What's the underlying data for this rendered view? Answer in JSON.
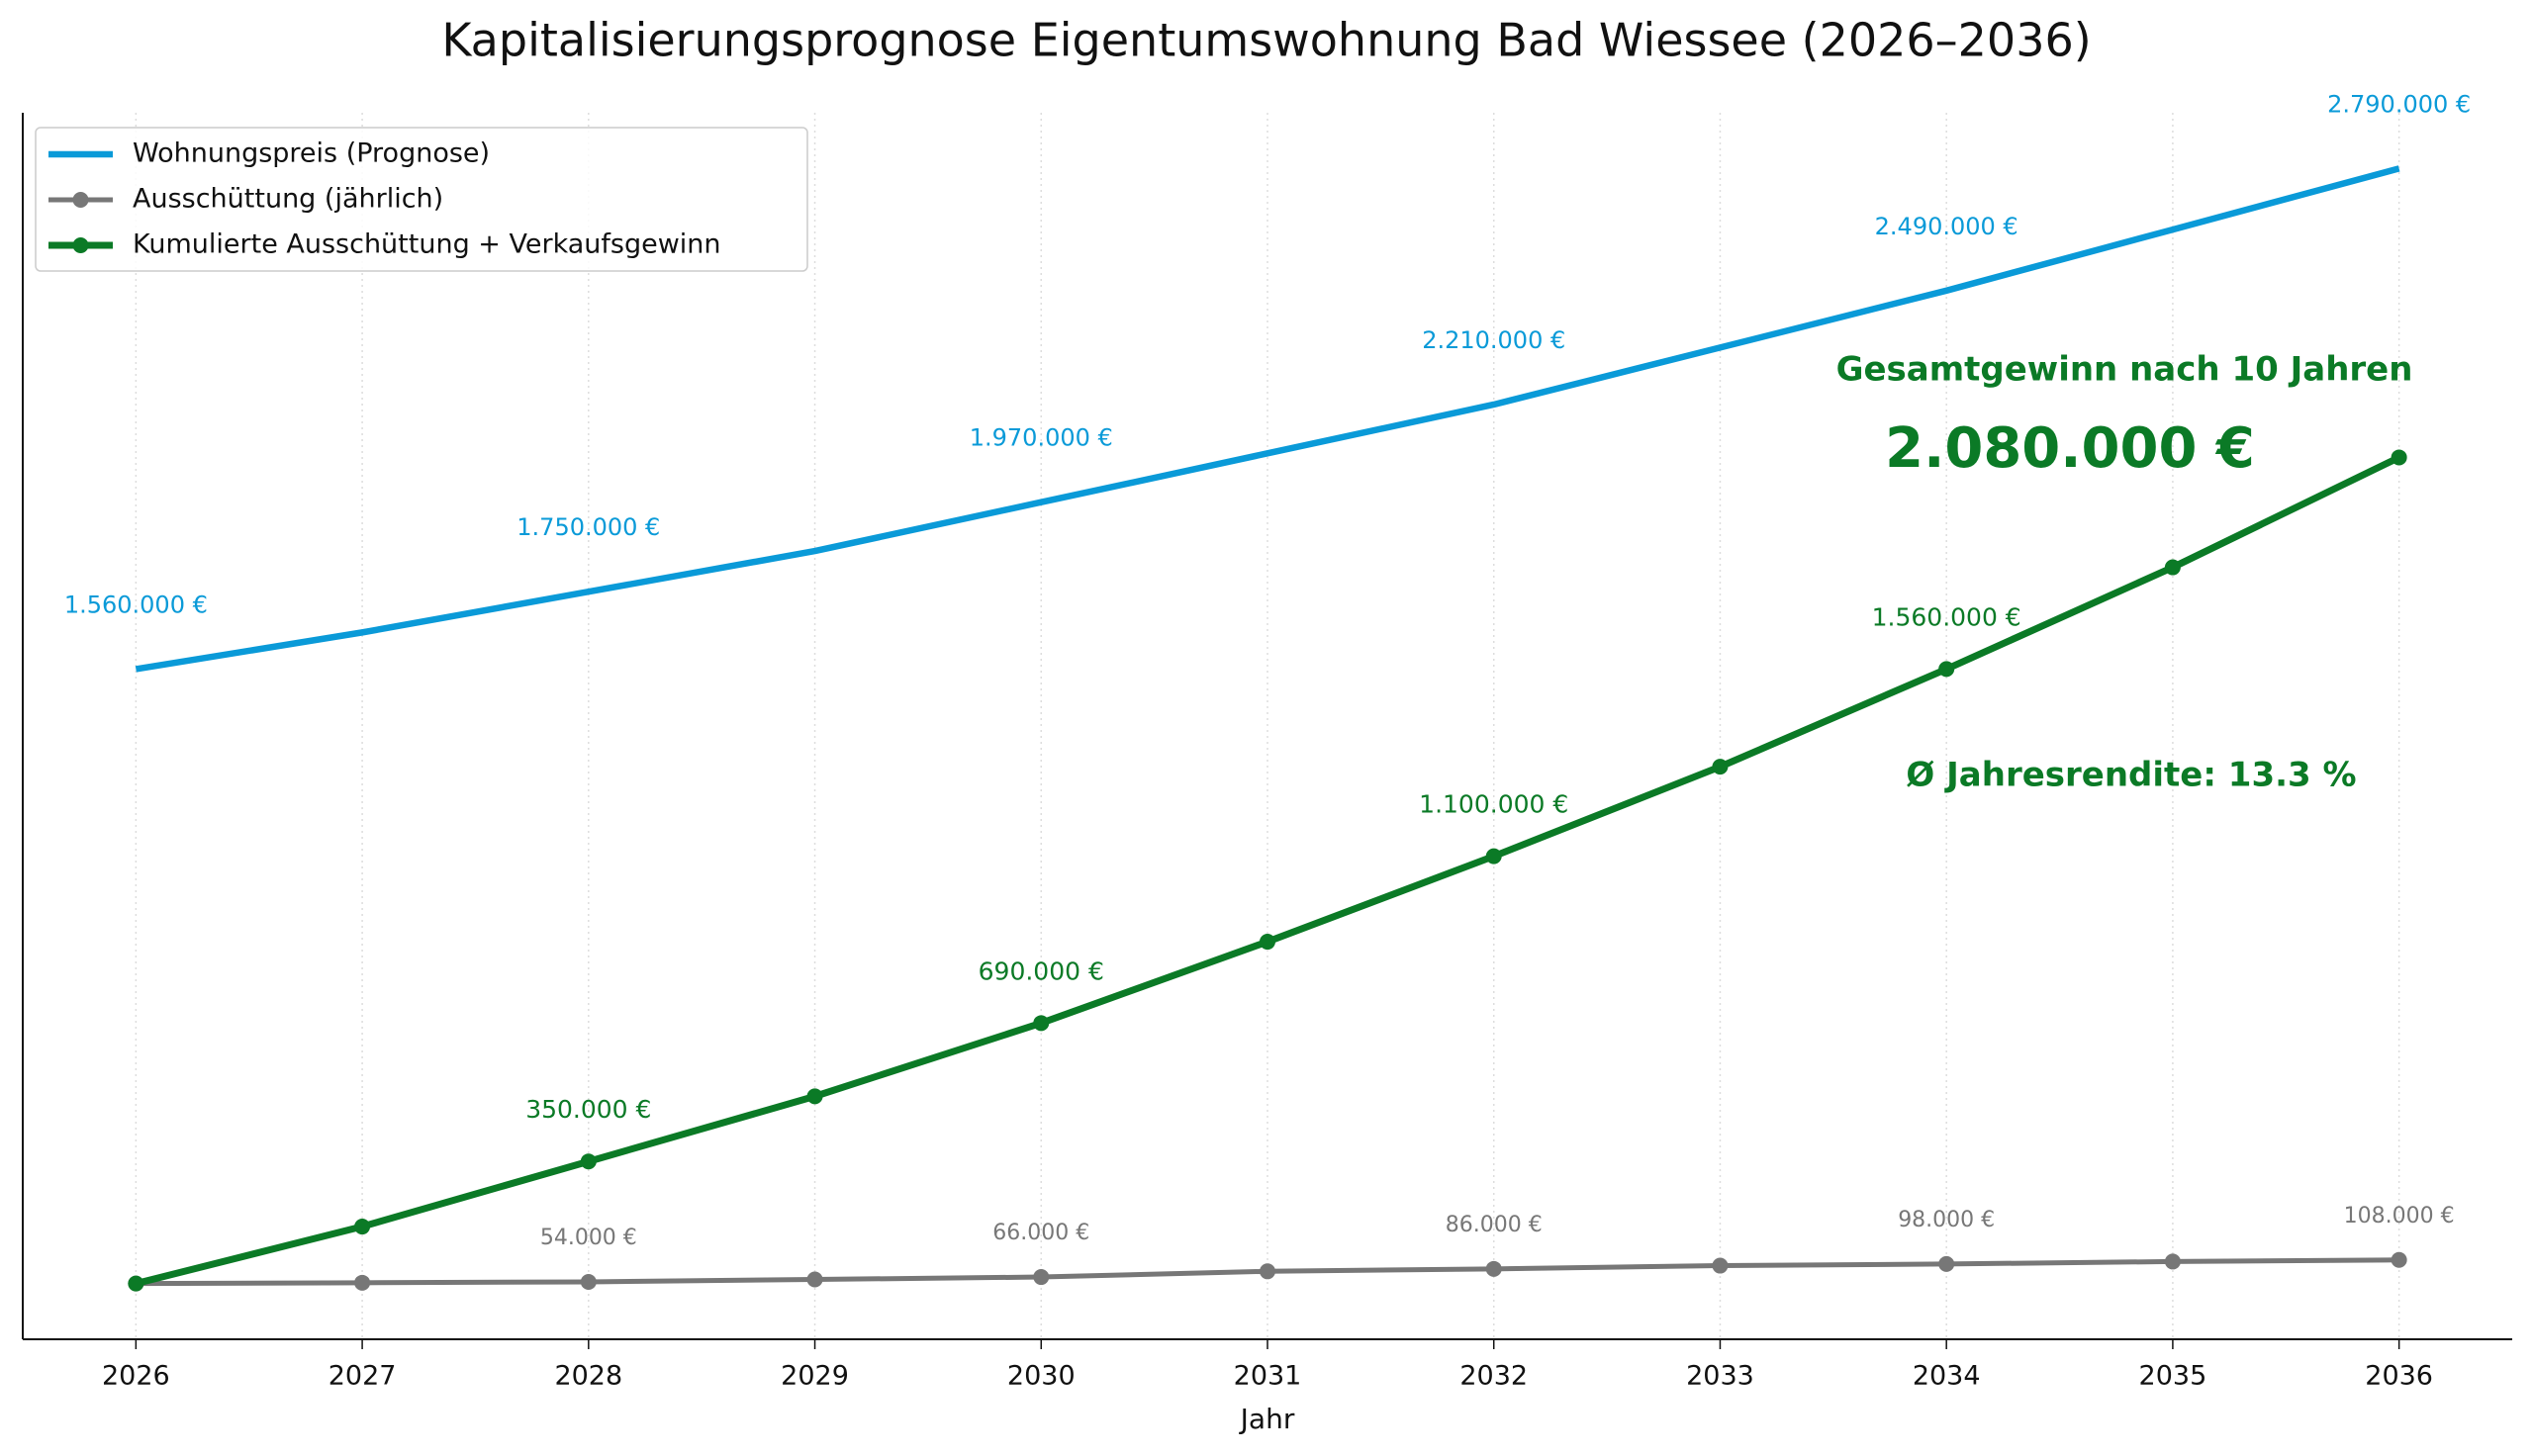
{
  "chart_data": {
    "type": "line",
    "title": "Kapitalisierungsprognose Eigentumswohnung Bad Wiessee (2026–2036)",
    "xlabel": "Jahr",
    "x": [
      2026,
      2027,
      2028,
      2029,
      2030,
      2031,
      2032,
      2033,
      2034,
      2035,
      2036
    ],
    "xlim": [
      2025.5,
      2036.5
    ],
    "xticks": [
      2026,
      2027,
      2028,
      2029,
      2030,
      2031,
      2032,
      2033,
      2034,
      2035,
      2036
    ],
    "ylim": [
      -87000,
      2927000
    ],
    "grid": "x",
    "legend": "upper left",
    "series": [
      {
        "name": "Wohnungspreis (Prognose)",
        "color": "#0a9ad8",
        "marker": false,
        "values": [
          1560000,
          1650000,
          1750000,
          1850000,
          1970000,
          2090000,
          2210000,
          2350000,
          2490000,
          2640000,
          2790000
        ],
        "value_labels": [
          "1.560.000 €",
          null,
          "1.750.000 €",
          null,
          "1.970.000 €",
          null,
          "2.210.000 €",
          null,
          "2.490.000 €",
          null,
          "2.790.000 €"
        ]
      },
      {
        "name": "Ausschüttung (jährlich)",
        "color": "#777777",
        "marker": true,
        "values": [
          50000,
          52000,
          54000,
          60000,
          66000,
          80000,
          86000,
          94000,
          98000,
          104000,
          108000
        ],
        "value_labels": [
          null,
          null,
          "54.000 €",
          null,
          "66.000 €",
          null,
          "86.000 €",
          null,
          "98.000 €",
          null,
          "108.000 €"
        ]
      },
      {
        "name": "Kumulierte Ausschüttung + Verkaufsgewinn",
        "color": "#0b7a26",
        "marker": true,
        "values": [
          50000,
          190000,
          350000,
          510000,
          690000,
          890000,
          1100000,
          1320000,
          1560000,
          1810000,
          2080000
        ],
        "value_labels": [
          null,
          null,
          "350.000 €",
          null,
          "690.000 €",
          null,
          "1.100.000 €",
          null,
          "1.560.000 €",
          null,
          null
        ]
      }
    ],
    "annotations": [
      "Gesamtgewinn nach 10 Jahren",
      "2.080.000 €",
      "Ø Jahresrendite: 13.3 %"
    ],
    "annotation_color": "#0b7a26"
  }
}
